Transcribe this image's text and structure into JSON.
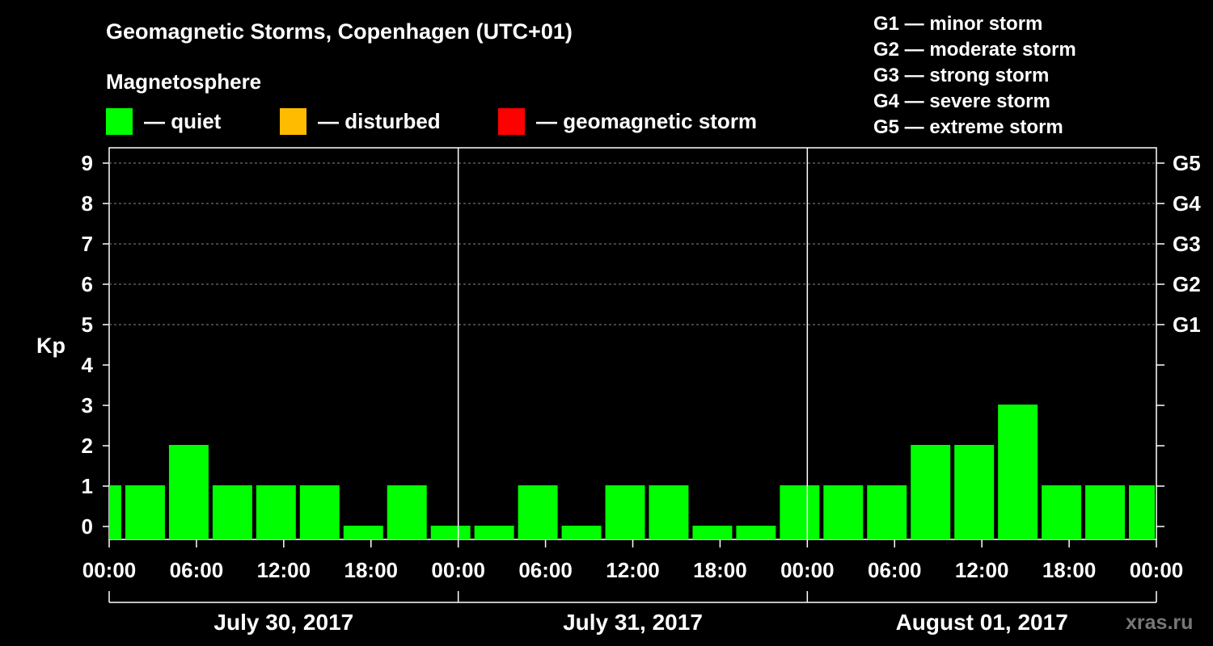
{
  "title": "Geomagnetic Storms, Copenhagen (UTC+01)",
  "magnetosphere": {
    "title": "Magnetosphere",
    "items": [
      {
        "label": "— quiet",
        "color": "#00ff00"
      },
      {
        "label": "— disturbed",
        "color": "#ffbb00"
      },
      {
        "label": "— geomagnetic storm",
        "color": "#ff0000"
      }
    ]
  },
  "storm_scale": [
    "G1 — minor storm",
    "G2 — moderate storm",
    "G3 — strong storm",
    "G4 — severe storm",
    "G5 — extreme storm"
  ],
  "watermark": "xras.ru",
  "chart_data": {
    "type": "bar",
    "ylabel": "Kp",
    "ylim": [
      0,
      9
    ],
    "yticks": [
      0,
      1,
      2,
      3,
      4,
      5,
      6,
      7,
      8,
      9
    ],
    "right_ticks": [
      {
        "value": 5,
        "label": "G1"
      },
      {
        "value": 6,
        "label": "G2"
      },
      {
        "value": 7,
        "label": "G3"
      },
      {
        "value": 8,
        "label": "G4"
      },
      {
        "value": 9,
        "label": "G5"
      }
    ],
    "x_range_hours": [
      0,
      72
    ],
    "xtick_labels": [
      "00:00",
      "06:00",
      "12:00",
      "18:00",
      "00:00",
      "06:00",
      "12:00",
      "18:00",
      "00:00",
      "06:00",
      "12:00",
      "18:00",
      "00:00"
    ],
    "day_labels": [
      "July 30, 2017",
      "July 31, 2017",
      "August 01, 2017"
    ],
    "bar_color": "#00ff00",
    "bars": [
      {
        "start": 0,
        "end": 1,
        "kp": 1
      },
      {
        "start": 1,
        "end": 4,
        "kp": 1
      },
      {
        "start": 4,
        "end": 7,
        "kp": 2
      },
      {
        "start": 7,
        "end": 10,
        "kp": 1
      },
      {
        "start": 10,
        "end": 13,
        "kp": 1
      },
      {
        "start": 13,
        "end": 16,
        "kp": 1
      },
      {
        "start": 16,
        "end": 19,
        "kp": 0
      },
      {
        "start": 19,
        "end": 22,
        "kp": 1
      },
      {
        "start": 22,
        "end": 25,
        "kp": 0
      },
      {
        "start": 25,
        "end": 28,
        "kp": 0
      },
      {
        "start": 28,
        "end": 31,
        "kp": 1
      },
      {
        "start": 31,
        "end": 34,
        "kp": 0
      },
      {
        "start": 34,
        "end": 37,
        "kp": 1
      },
      {
        "start": 37,
        "end": 40,
        "kp": 1
      },
      {
        "start": 40,
        "end": 43,
        "kp": 0
      },
      {
        "start": 43,
        "end": 46,
        "kp": 0
      },
      {
        "start": 46,
        "end": 49,
        "kp": 1
      },
      {
        "start": 49,
        "end": 52,
        "kp": 1
      },
      {
        "start": 52,
        "end": 55,
        "kp": 1
      },
      {
        "start": 55,
        "end": 58,
        "kp": 2
      },
      {
        "start": 58,
        "end": 61,
        "kp": 2
      },
      {
        "start": 61,
        "end": 64,
        "kp": 3
      },
      {
        "start": 64,
        "end": 67,
        "kp": 1
      },
      {
        "start": 67,
        "end": 70,
        "kp": 1
      },
      {
        "start": 70,
        "end": 72,
        "kp": 1
      }
    ]
  }
}
